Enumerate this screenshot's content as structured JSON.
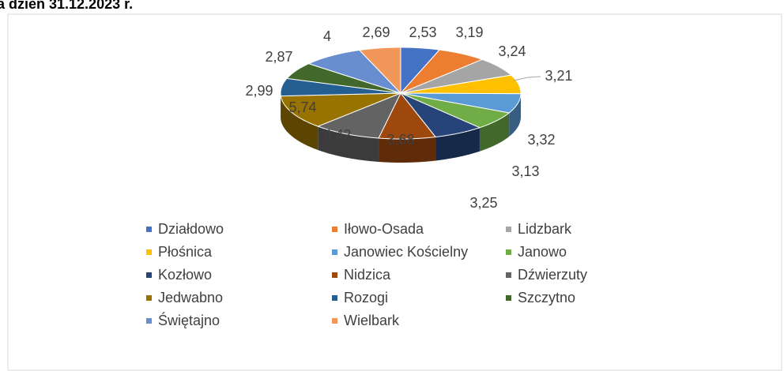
{
  "chart_data": {
    "type": "pie3d",
    "title": "a dzień 31.12.2023 r.",
    "categories": [
      "Działdowo",
      "Iłowo-Osada",
      "Lidzbark",
      "Płośnica",
      "Janowiec Kościelny",
      "Janowo",
      "Kozłowo",
      "Nidzica",
      "Dźwierzuty",
      "Jedwabno",
      "Rozogi",
      "Szczytno",
      "Świętajno",
      "Wielbark"
    ],
    "values": [
      2.53,
      3.19,
      3.24,
      3.21,
      3.32,
      3.13,
      3.25,
      3.68,
      4.42,
      5.74,
      2.99,
      2.87,
      4,
      2.69
    ],
    "value_labels": [
      "2,53",
      "3,19",
      "3,24",
      "3,21",
      "3,32",
      "3,13",
      "3,25",
      "3,68",
      "4,42",
      "5,74",
      "2,99",
      "2,87",
      "4",
      "2,69"
    ],
    "colors": [
      "#4472c4",
      "#ed7d31",
      "#a5a5a5",
      "#ffc000",
      "#5b9bd5",
      "#70ad47",
      "#264478",
      "#9e480e",
      "#636363",
      "#997300",
      "#255e91",
      "#43682b",
      "#698ed0",
      "#f1975a"
    ],
    "legend": "bottom"
  }
}
